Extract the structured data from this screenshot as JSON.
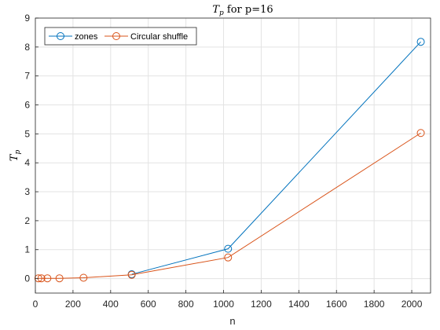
{
  "chart_data": {
    "type": "line",
    "title": {
      "main": "T",
      "sub": "p",
      "rest": " for p=16"
    },
    "xlabel": "n",
    "ylabel": {
      "main": "T",
      "sub": "p"
    },
    "xlim": [
      0,
      2100
    ],
    "ylim": [
      -0.5,
      9
    ],
    "xticks": [
      0,
      200,
      400,
      600,
      800,
      1000,
      1200,
      1400,
      1600,
      1800,
      2000
    ],
    "yticks": [
      0,
      1,
      2,
      3,
      4,
      5,
      6,
      7,
      8,
      9
    ],
    "grid": true,
    "legend_position": "top-left",
    "series": [
      {
        "name": "zones",
        "color": "#0072BD",
        "x": [
          512,
          1024,
          2048
        ],
        "y": [
          0.15,
          1.03,
          8.18
        ]
      },
      {
        "name": "Circular shuffle",
        "color": "#D95319",
        "x": [
          16,
          32,
          64,
          128,
          256,
          512,
          1024,
          2048
        ],
        "y": [
          0.01,
          0.01,
          0.01,
          0.01,
          0.03,
          0.13,
          0.73,
          5.03
        ]
      }
    ]
  }
}
